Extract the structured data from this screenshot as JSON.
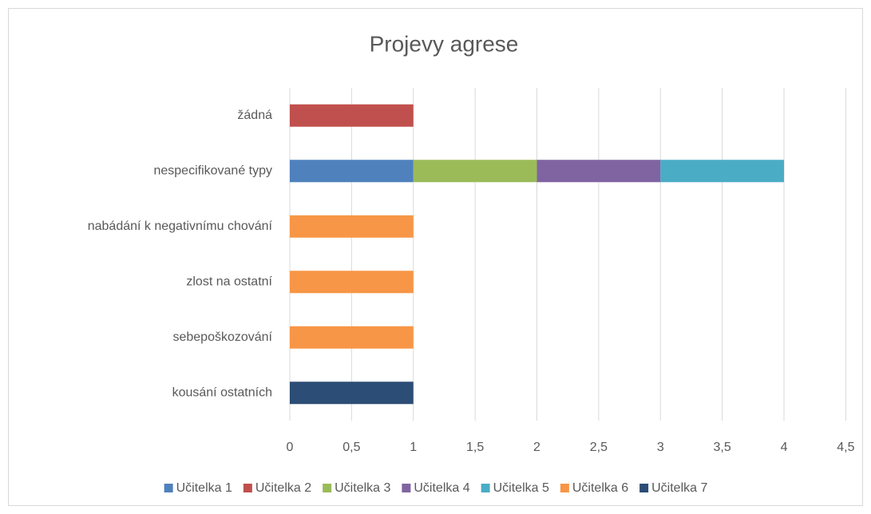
{
  "chart_data": {
    "type": "stacked-bar-horizontal",
    "title": "Projevy agrese",
    "categories": [
      "žádná",
      "nespecifikované typy",
      "nabádání k negativnímu chování",
      "zlost na ostatní",
      "sebepoškozování",
      "kousání ostatních"
    ],
    "series": [
      {
        "name": "Učitelka 1",
        "color": "#4f81bd",
        "values": [
          null,
          1,
          null,
          null,
          null,
          null
        ]
      },
      {
        "name": "Učitelka 2",
        "color": "#c0504d",
        "values": [
          1,
          null,
          null,
          null,
          null,
          null
        ]
      },
      {
        "name": "Učitelka 3",
        "color": "#9bbb59",
        "values": [
          null,
          1,
          null,
          null,
          null,
          null
        ]
      },
      {
        "name": "Učitelka 4",
        "color": "#8064a2",
        "values": [
          null,
          1,
          null,
          null,
          null,
          null
        ]
      },
      {
        "name": "Učitelka 5",
        "color": "#4bacc6",
        "values": [
          null,
          1,
          null,
          null,
          null,
          null
        ]
      },
      {
        "name": "Učitelka 6",
        "color": "#f79646",
        "values": [
          null,
          null,
          1,
          1,
          1,
          null
        ]
      },
      {
        "name": "Učitelka 7",
        "color": "#2c4d75",
        "values": [
          null,
          null,
          null,
          null,
          null,
          1
        ]
      }
    ],
    "xlim": [
      0,
      4.5
    ],
    "xticks": [
      0,
      {
        "value": 0.5,
        "label": "0,5"
      },
      1,
      {
        "value": 1.5,
        "label": "1,5"
      },
      2,
      {
        "value": 2.5,
        "label": "2,5"
      },
      3,
      {
        "value": 3.5,
        "label": "3,5"
      },
      4,
      {
        "value": 4.5,
        "label": "4,5"
      }
    ],
    "grid": true,
    "legend": "bottom"
  }
}
